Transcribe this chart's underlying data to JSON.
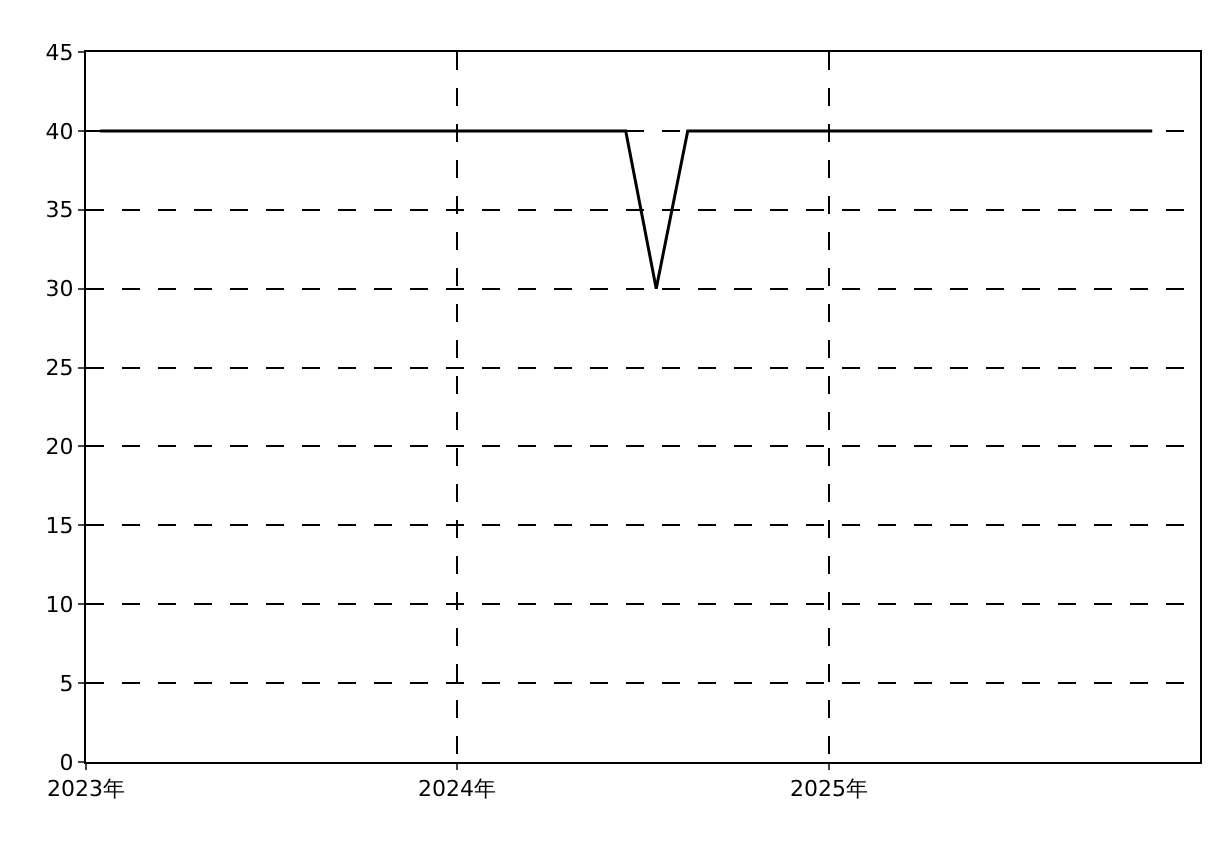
{
  "chart_data": {
    "type": "line",
    "x": [
      "2023-01-15",
      "2024-06-15",
      "2024-07-15",
      "2024-08-15",
      "2025-11-15"
    ],
    "series": [
      {
        "color": "#000000",
        "values": [
          40,
          40,
          30,
          40,
          40
        ]
      }
    ],
    "xlim": [
      "2023-01-01",
      "2026-01-01"
    ],
    "xticks": [
      {
        "value": "2023-01-01",
        "label": "2023年"
      },
      {
        "value": "2024-01-01",
        "label": "2024年"
      },
      {
        "value": "2025-01-01",
        "label": "2025年"
      }
    ],
    "ylim": [
      0,
      45
    ],
    "yticks": [
      0,
      5,
      10,
      15,
      20,
      25,
      30,
      35,
      40,
      45
    ],
    "grid": true,
    "marker": "none",
    "line_style": "solid"
  }
}
